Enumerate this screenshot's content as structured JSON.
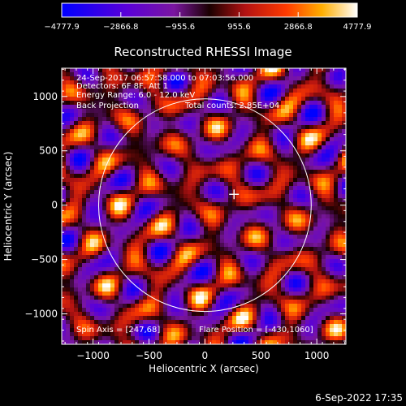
{
  "chart_data": {
    "type": "heatmap",
    "title": "Reconstructed RHESSI Image",
    "xlabel": "Heliocentric X (arcsec)",
    "ylabel": "Heliocentric Y (arcsec)",
    "xlim": [
      -1280,
      1260
    ],
    "ylim": [
      -1280,
      1260
    ],
    "x_ticks": [
      -1000,
      -500,
      0,
      500,
      1000
    ],
    "y_ticks": [
      -1000,
      -500,
      0,
      500,
      1000
    ],
    "x_tick_labels": [
      "−1000",
      "−500",
      "0",
      "500",
      "1000"
    ],
    "y_tick_labels": [
      "−1000",
      "−500",
      "0",
      "500",
      "1000"
    ],
    "colorbar": {
      "range": [
        -4777.9,
        4777.9
      ],
      "ticks": [
        -4777.9,
        -2866.8,
        -955.6,
        955.6,
        2866.8,
        4777.9
      ],
      "tick_labels": [
        "−4777.9",
        "−2866.8",
        "−955.6",
        "955.6",
        "2866.8",
        "4777.9"
      ]
    },
    "solar_limb_radius_arcsec": 950,
    "marker_position_arcsec": [
      260,
      100
    ],
    "annotations": {
      "time_range": "24-Sep-2017 06:57:58.000 to 07:03:56.000",
      "detectors": "Detectors: 6F 8F, Att 1",
      "energy_range": "Energy Range: 6.0 - 12.0 keV",
      "method": "Back Projection",
      "total_counts": "Total counts: 2.85E+04",
      "spin_axis": "Spin Axis = [247,68]",
      "flare_position": "Flare Position = [-430,1060]"
    },
    "footer_date": "6-Sep-2022 17:35",
    "colors": {
      "background": "#000000",
      "foreground": "#ffffff",
      "limb": "#ffffff"
    }
  }
}
